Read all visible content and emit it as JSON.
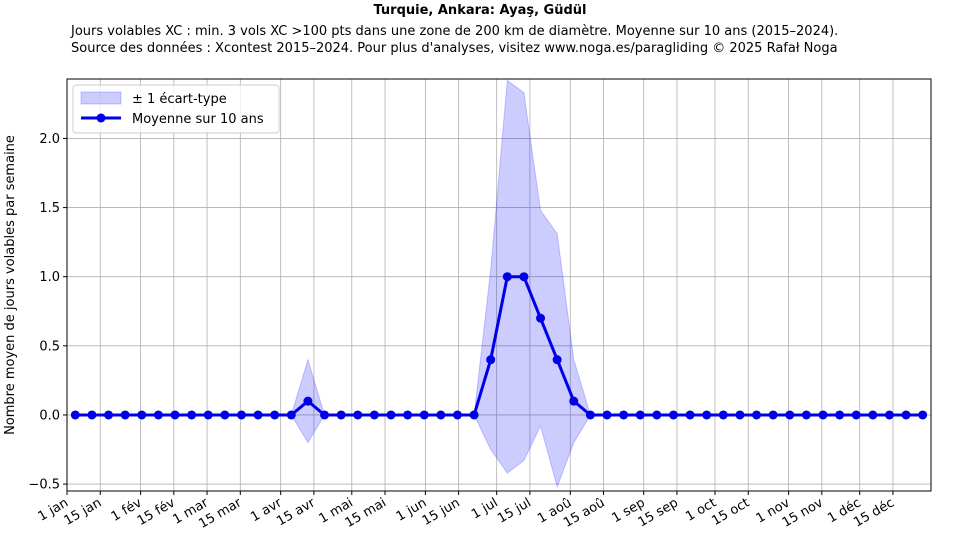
{
  "title": "Turquie, Ankara: Ayaş, Güdül",
  "subtitle_lines": [
    "Jours volables XC : min. 3 vols XC >100 pts dans une zone de 200 km de diamètre. Moyenne sur 10 ans (2015–2024).",
    "Source des données : Xcontest 2015–2024. Pour plus d'analyses, visitez www.noga.es/paragliding © 2025 Rafał Noga"
  ],
  "chart_data": {
    "type": "line",
    "ylabel": "Nombre moyen de jours volables par semaine",
    "xlabel": "",
    "ylim": [
      -0.55,
      2.43
    ],
    "xlim_week": [
      0.5,
      52.5
    ],
    "grid": true,
    "legend_position": "top-left",
    "yticks": [
      -0.5,
      0.0,
      0.5,
      1.0,
      1.5,
      2.0
    ],
    "ytick_labels": [
      "−0.5",
      "0.0",
      "0.5",
      "1.0",
      "1.5",
      "2.0"
    ],
    "xticks": [
      {
        "label": "1 jan",
        "week": 0.5
      },
      {
        "label": "15 jan",
        "week": 2.5
      },
      {
        "label": "1 fév",
        "week": 4.93
      },
      {
        "label": "15 fév",
        "week": 6.93
      },
      {
        "label": "1 mar",
        "week": 8.93
      },
      {
        "label": "15 mar",
        "week": 10.93
      },
      {
        "label": "1 avr",
        "week": 13.36
      },
      {
        "label": "15 avr",
        "week": 15.36
      },
      {
        "label": "1 mai",
        "week": 17.64
      },
      {
        "label": "15 mai",
        "week": 19.64
      },
      {
        "label": "1 jun",
        "week": 22.07
      },
      {
        "label": "15 jun",
        "week": 24.07
      },
      {
        "label": "1 jul",
        "week": 26.36
      },
      {
        "label": "15 jul",
        "week": 28.36
      },
      {
        "label": "1 aoû",
        "week": 30.79
      },
      {
        "label": "15 aoû",
        "week": 32.79
      },
      {
        "label": "1 sep",
        "week": 35.21
      },
      {
        "label": "15 sep",
        "week": 37.21
      },
      {
        "label": "1 oct",
        "week": 39.5
      },
      {
        "label": "15 oct",
        "week": 41.5
      },
      {
        "label": "1 nov",
        "week": 43.93
      },
      {
        "label": "15 nov",
        "week": 45.93
      },
      {
        "label": "1 déc",
        "week": 48.21
      },
      {
        "label": "15 déc",
        "week": 50.21
      }
    ],
    "x_weeks": [
      1,
      2,
      3,
      4,
      5,
      6,
      7,
      8,
      9,
      10,
      11,
      12,
      13,
      14,
      15,
      16,
      17,
      18,
      19,
      20,
      21,
      22,
      23,
      24,
      25,
      26,
      27,
      28,
      29,
      30,
      31,
      32,
      33,
      34,
      35,
      36,
      37,
      38,
      39,
      40,
      41,
      42,
      43,
      44,
      45,
      46,
      47,
      48,
      49,
      50,
      51,
      52
    ],
    "series": [
      {
        "name": "Moyenne sur 10 ans",
        "color": "#0000e6",
        "values": [
          0,
          0,
          0,
          0,
          0,
          0,
          0,
          0,
          0,
          0,
          0,
          0,
          0,
          0,
          0.1,
          0,
          0,
          0,
          0,
          0,
          0,
          0,
          0,
          0,
          0,
          0.4,
          1.0,
          1.0,
          0.7,
          0.4,
          0.1,
          0,
          0,
          0,
          0,
          0,
          0,
          0,
          0,
          0,
          0,
          0,
          0,
          0,
          0,
          0,
          0,
          0,
          0,
          0,
          0,
          0
        ]
      }
    ],
    "band": {
      "name": "± 1 écart-type",
      "color": "#0000ff",
      "lower": [
        0,
        0,
        0,
        0,
        0,
        0,
        0,
        0,
        0,
        0,
        0,
        0,
        0,
        0,
        -0.2,
        0,
        0,
        0,
        0,
        0,
        0,
        0,
        0,
        0,
        0,
        -0.25,
        -0.42,
        -0.33,
        -0.08,
        -0.52,
        -0.2,
        0,
        0,
        0,
        0,
        0,
        0,
        0,
        0,
        0,
        0,
        0,
        0,
        0,
        0,
        0,
        0,
        0,
        0,
        0,
        0,
        0
      ],
      "upper": [
        0,
        0,
        0,
        0,
        0,
        0,
        0,
        0,
        0,
        0,
        0,
        0,
        0,
        0,
        0.4,
        0,
        0,
        0,
        0,
        0,
        0,
        0,
        0,
        0,
        0,
        1.05,
        2.42,
        2.33,
        1.48,
        1.31,
        0.4,
        0,
        0,
        0,
        0,
        0,
        0,
        0,
        0,
        0,
        0,
        0,
        0,
        0,
        0,
        0,
        0,
        0,
        0,
        0,
        0,
        0
      ]
    }
  }
}
